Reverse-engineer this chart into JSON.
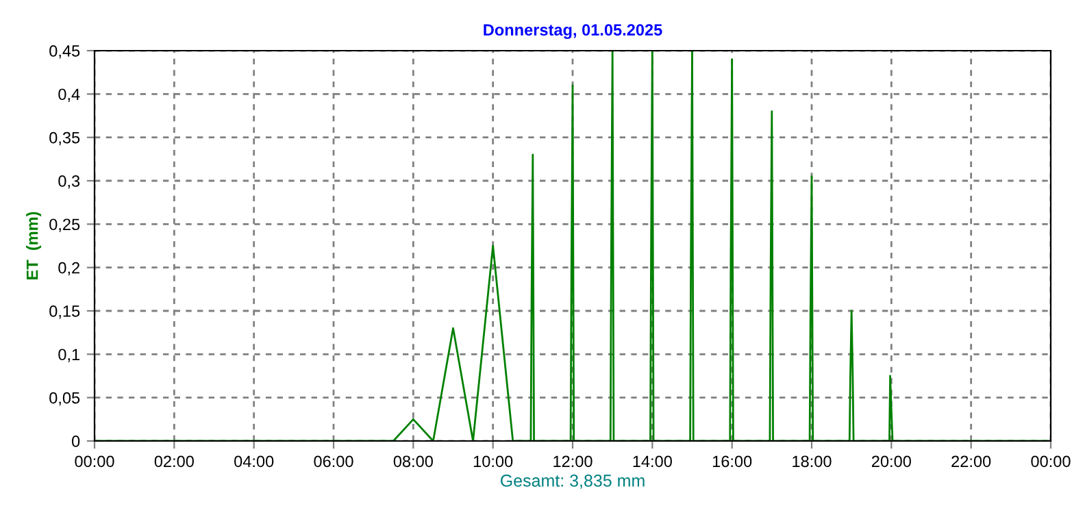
{
  "chart_data": {
    "type": "line",
    "title": "Donnerstag, 01.05.2025",
    "ylabel": "ET  (mm)",
    "xlabel": "Gesamt: 3,835 mm",
    "x": [
      0,
      7.5,
      8,
      8.5,
      9,
      9.5,
      10,
      10.5,
      10.95,
      10.97,
      11,
      11.03,
      11.95,
      11.97,
      12,
      12.03,
      12.95,
      12.97,
      13,
      13.03,
      13.95,
      13.97,
      14,
      14.03,
      14.95,
      14.97,
      15,
      15.03,
      15.95,
      15.97,
      16,
      16.03,
      16.95,
      16.97,
      17,
      17.03,
      17.95,
      17.97,
      18,
      18.03,
      18.95,
      18.97,
      19,
      19.03,
      19.05,
      19.95,
      19.97,
      20,
      20.03,
      24
    ],
    "series": [
      {
        "color": "#008000",
        "values": [
          0,
          0,
          0.025,
          0,
          0.13,
          0,
          0.225,
          0,
          0,
          0.165,
          0.33,
          0,
          0,
          0.2,
          0.41,
          0,
          0,
          0.225,
          0.45,
          0,
          0,
          0.225,
          0.45,
          0,
          0,
          0.225,
          0.45,
          0,
          0,
          0.215,
          0.44,
          0,
          0,
          0.19,
          0.38,
          0,
          0,
          0.15,
          0.305,
          0,
          0,
          0.075,
          0.15,
          0.075,
          0,
          0,
          0.075,
          0.035,
          0,
          0
        ]
      }
    ],
    "xlim": [
      0,
      24
    ],
    "xticks": [
      {
        "value": 0,
        "label": "00:00"
      },
      {
        "value": 2,
        "label": "02:00"
      },
      {
        "value": 4,
        "label": "04:00"
      },
      {
        "value": 6,
        "label": "06:00"
      },
      {
        "value": 8,
        "label": "08:00"
      },
      {
        "value": 10,
        "label": "10:00"
      },
      {
        "value": 12,
        "label": "12:00"
      },
      {
        "value": 14,
        "label": "14:00"
      },
      {
        "value": 16,
        "label": "16:00"
      },
      {
        "value": 18,
        "label": "18:00"
      },
      {
        "value": 20,
        "label": "20:00"
      },
      {
        "value": 22,
        "label": "22:00"
      },
      {
        "value": 24,
        "label": "00:00"
      }
    ],
    "ylim": [
      0,
      0.45
    ],
    "yticks": [
      0,
      {
        "value": 0.05,
        "label": "0,05"
      },
      {
        "value": 0.1,
        "label": "0,1"
      },
      {
        "value": 0.15,
        "label": "0,15"
      },
      {
        "value": 0.2,
        "label": "0,2"
      },
      {
        "value": 0.25,
        "label": "0,25"
      },
      {
        "value": 0.3,
        "label": "0,3"
      },
      {
        "value": 0.35,
        "label": "0,35"
      },
      {
        "value": 0.4,
        "label": "0,4"
      },
      {
        "value": 0.45,
        "label": "0,45"
      }
    ],
    "grid": true,
    "legend": false,
    "marker": "none",
    "line_style": "solid"
  }
}
